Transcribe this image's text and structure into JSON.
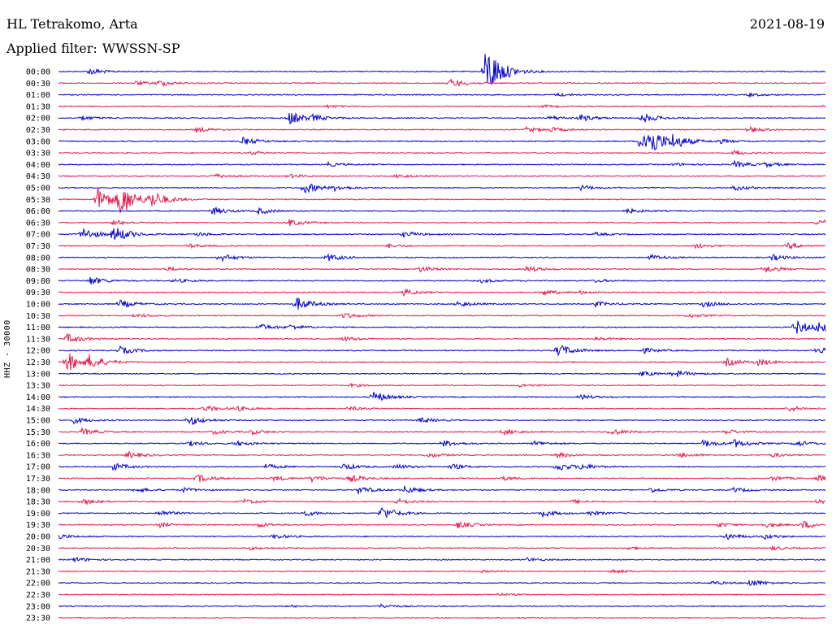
{
  "header": {
    "station": "HL Tetrakomo, Arta",
    "date": "2021-08-19",
    "filter_label": "Applied filter:",
    "filter_value": "WWSSN-SP"
  },
  "channel_label": "HHZ - 30000",
  "colors": {
    "line_a": "#0000cc",
    "line_b": "#e6194b",
    "background": "#ffffff",
    "text": "#000000"
  },
  "chart_data": {
    "type": "line",
    "title": "",
    "xlabel": "",
    "ylabel": "HHZ - 30000",
    "rows": [
      {
        "label": "00:00",
        "color": "line_a",
        "events": [
          [
            0.04,
            0.7
          ],
          [
            0.555,
            3.2
          ],
          [
            0.56,
            2.4
          ]
        ]
      },
      {
        "label": "00:30",
        "color": "line_b",
        "events": [
          [
            0.1,
            0.4
          ],
          [
            0.13,
            0.6
          ],
          [
            0.51,
            0.9
          ]
        ]
      },
      {
        "label": "01:00",
        "color": "line_a",
        "events": [
          [
            0.65,
            0.3
          ],
          [
            0.9,
            0.3
          ]
        ]
      },
      {
        "label": "01:30",
        "color": "line_b",
        "events": [
          [
            0.35,
            0.3
          ],
          [
            0.63,
            0.3
          ],
          [
            1.0,
            0.8
          ]
        ]
      },
      {
        "label": "02:00",
        "color": "line_a",
        "events": [
          [
            0.03,
            0.4
          ],
          [
            0.3,
            1.4
          ],
          [
            0.33,
            0.5
          ],
          [
            0.64,
            0.5
          ],
          [
            0.68,
            0.6
          ],
          [
            0.76,
            1.0
          ]
        ]
      },
      {
        "label": "02:30",
        "color": "line_b",
        "events": [
          [
            0.18,
            0.5
          ],
          [
            0.61,
            0.5
          ],
          [
            0.64,
            0.4
          ],
          [
            0.9,
            0.6
          ]
        ]
      },
      {
        "label": "03:00",
        "color": "line_a",
        "events": [
          [
            0.24,
            0.8
          ],
          [
            0.76,
            3.2
          ],
          [
            0.77,
            1.4
          ],
          [
            0.8,
            1.2
          ],
          [
            0.86,
            0.4
          ]
        ]
      },
      {
        "label": "03:30",
        "color": "line_b",
        "events": [
          [
            0.25,
            0.4
          ],
          [
            0.88,
            0.5
          ]
        ]
      },
      {
        "label": "04:00",
        "color": "line_a",
        "events": [
          [
            0.35,
            0.4
          ],
          [
            0.8,
            0.3
          ],
          [
            0.88,
            0.7
          ],
          [
            0.92,
            0.4
          ]
        ]
      },
      {
        "label": "04:30",
        "color": "line_b",
        "events": [
          [
            0.2,
            0.5
          ],
          [
            0.3,
            0.4
          ],
          [
            0.44,
            0.4
          ]
        ]
      },
      {
        "label": "05:00",
        "color": "line_a",
        "events": [
          [
            0.32,
            1.2
          ],
          [
            0.36,
            0.5
          ],
          [
            0.68,
            0.5
          ],
          [
            0.88,
            0.6
          ]
        ]
      },
      {
        "label": "05:30",
        "color": "line_b",
        "events": [
          [
            0.05,
            2.8
          ],
          [
            0.08,
            3.2
          ],
          [
            0.12,
            1.6
          ]
        ]
      },
      {
        "label": "06:00",
        "color": "line_a",
        "events": [
          [
            0.2,
            0.8
          ],
          [
            0.26,
            0.6
          ],
          [
            0.74,
            0.5
          ]
        ]
      },
      {
        "label": "06:30",
        "color": "line_b",
        "events": [
          [
            0.07,
            0.6
          ],
          [
            0.3,
            0.7
          ],
          [
            0.99,
            0.8
          ]
        ]
      },
      {
        "label": "07:00",
        "color": "line_a",
        "events": [
          [
            0.03,
            1.4
          ],
          [
            0.07,
            1.8
          ],
          [
            0.18,
            0.4
          ],
          [
            0.45,
            0.6
          ],
          [
            0.7,
            0.3
          ]
        ]
      },
      {
        "label": "07:30",
        "color": "line_b",
        "events": [
          [
            0.17,
            0.4
          ],
          [
            0.43,
            0.4
          ],
          [
            0.83,
            0.5
          ],
          [
            0.95,
            0.6
          ]
        ]
      },
      {
        "label": "08:00",
        "color": "line_a",
        "events": [
          [
            0.21,
            0.8
          ],
          [
            0.35,
            0.8
          ],
          [
            0.77,
            0.6
          ],
          [
            0.93,
            0.6
          ]
        ]
      },
      {
        "label": "08:30",
        "color": "line_b",
        "events": [
          [
            0.14,
            0.4
          ],
          [
            0.47,
            0.6
          ],
          [
            0.61,
            0.6
          ],
          [
            0.92,
            0.8
          ]
        ]
      },
      {
        "label": "09:00",
        "color": "line_a",
        "events": [
          [
            0.04,
            0.9
          ],
          [
            0.15,
            0.4
          ],
          [
            0.55,
            0.4
          ],
          [
            0.7,
            0.3
          ]
        ]
      },
      {
        "label": "09:30",
        "color": "line_b",
        "events": [
          [
            0.45,
            0.6
          ],
          [
            0.63,
            0.6
          ],
          [
            0.68,
            0.3
          ]
        ]
      },
      {
        "label": "10:00",
        "color": "line_a",
        "events": [
          [
            0.08,
            0.8
          ],
          [
            0.31,
            1.4
          ],
          [
            0.52,
            0.6
          ],
          [
            0.7,
            0.5
          ],
          [
            0.84,
            0.6
          ]
        ]
      },
      {
        "label": "10:30",
        "color": "line_b",
        "events": [
          [
            0.1,
            0.4
          ],
          [
            0.37,
            0.6
          ],
          [
            0.82,
            0.4
          ]
        ]
      },
      {
        "label": "11:00",
        "color": "line_a",
        "events": [
          [
            0.26,
            0.7
          ],
          [
            0.3,
            0.5
          ],
          [
            0.96,
            1.6
          ],
          [
            0.99,
            1.0
          ]
        ]
      },
      {
        "label": "11:30",
        "color": "line_b",
        "events": [
          [
            0.01,
            1.0
          ],
          [
            0.37,
            0.5
          ],
          [
            0.7,
            0.4
          ]
        ]
      },
      {
        "label": "12:00",
        "color": "line_a",
        "events": [
          [
            0.08,
            0.8
          ],
          [
            0.65,
            1.4
          ],
          [
            0.76,
            0.6
          ],
          [
            0.99,
            0.8
          ]
        ]
      },
      {
        "label": "12:30",
        "color": "line_b",
        "events": [
          [
            0.01,
            2.2
          ],
          [
            0.04,
            1.2
          ],
          [
            0.87,
            0.8
          ],
          [
            0.91,
            0.7
          ]
        ]
      },
      {
        "label": "13:00",
        "color": "line_a",
        "events": [
          [
            0.8,
            0.8
          ],
          [
            0.76,
            0.5
          ]
        ]
      },
      {
        "label": "13:30",
        "color": "line_b",
        "events": [
          [
            0.38,
            0.3
          ],
          [
            0.6,
            0.3
          ]
        ]
      },
      {
        "label": "14:00",
        "color": "line_a",
        "events": [
          [
            0.41,
            1.2
          ],
          [
            0.68,
            0.5
          ]
        ]
      },
      {
        "label": "14:30",
        "color": "line_b",
        "events": [
          [
            0.19,
            0.6
          ],
          [
            0.23,
            0.5
          ],
          [
            0.38,
            0.4
          ],
          [
            0.95,
            0.6
          ]
        ]
      },
      {
        "label": "15:00",
        "color": "line_a",
        "events": [
          [
            0.02,
            0.6
          ],
          [
            0.17,
            1.0
          ],
          [
            0.47,
            0.6
          ]
        ]
      },
      {
        "label": "15:30",
        "color": "line_b",
        "events": [
          [
            0.03,
            0.7
          ],
          [
            0.2,
            0.5
          ],
          [
            0.25,
            0.5
          ],
          [
            0.58,
            0.6
          ],
          [
            0.72,
            0.7
          ],
          [
            0.87,
            0.5
          ]
        ]
      },
      {
        "label": "16:00",
        "color": "line_a",
        "events": [
          [
            0.17,
            0.5
          ],
          [
            0.23,
            0.5
          ],
          [
            0.5,
            0.7
          ],
          [
            0.62,
            0.5
          ],
          [
            0.84,
            0.8
          ],
          [
            0.88,
            0.8
          ],
          [
            0.96,
            0.6
          ]
        ]
      },
      {
        "label": "16:30",
        "color": "line_b",
        "events": [
          [
            0.09,
            0.7
          ],
          [
            0.48,
            0.5
          ],
          [
            0.65,
            0.5
          ],
          [
            0.81,
            0.5
          ],
          [
            0.93,
            0.4
          ]
        ]
      },
      {
        "label": "17:00",
        "color": "line_a",
        "events": [
          [
            0.07,
            0.8
          ],
          [
            0.27,
            0.5
          ],
          [
            0.37,
            0.7
          ],
          [
            0.44,
            0.5
          ],
          [
            0.51,
            0.6
          ],
          [
            0.65,
            0.9
          ],
          [
            0.68,
            0.5
          ]
        ]
      },
      {
        "label": "17:30",
        "color": "line_b",
        "events": [
          [
            0.18,
            0.9
          ],
          [
            0.28,
            0.5
          ],
          [
            0.33,
            0.6
          ],
          [
            0.38,
            0.7
          ],
          [
            0.58,
            0.4
          ],
          [
            0.93,
            0.5
          ],
          [
            0.99,
            0.6
          ]
        ]
      },
      {
        "label": "18:00",
        "color": "line_a",
        "events": [
          [
            0.1,
            0.5
          ],
          [
            0.16,
            0.5
          ],
          [
            0.39,
            0.8
          ],
          [
            0.45,
            0.8
          ],
          [
            0.77,
            0.5
          ],
          [
            0.88,
            0.5
          ]
        ]
      },
      {
        "label": "18:30",
        "color": "line_b",
        "events": [
          [
            0.03,
            0.6
          ],
          [
            0.24,
            0.5
          ],
          [
            0.44,
            0.6
          ],
          [
            0.67,
            0.4
          ],
          [
            0.99,
            0.7
          ]
        ]
      },
      {
        "label": "19:00",
        "color": "line_a",
        "events": [
          [
            0.13,
            0.6
          ],
          [
            0.32,
            0.6
          ],
          [
            0.42,
            1.4
          ],
          [
            0.63,
            0.7
          ],
          [
            0.69,
            0.5
          ]
        ]
      },
      {
        "label": "19:30",
        "color": "line_b",
        "events": [
          [
            0.13,
            0.5
          ],
          [
            0.26,
            0.5
          ],
          [
            0.52,
            0.7
          ],
          [
            0.86,
            0.5
          ],
          [
            0.92,
            0.5
          ],
          [
            0.97,
            0.8
          ]
        ]
      },
      {
        "label": "20:00",
        "color": "line_a",
        "events": [
          [
            0.0,
            0.5
          ],
          [
            0.28,
            0.5
          ],
          [
            0.87,
            0.7
          ],
          [
            0.92,
            0.5
          ]
        ]
      },
      {
        "label": "20:30",
        "color": "line_b",
        "events": [
          [
            0.25,
            0.3
          ],
          [
            0.74,
            0.3
          ],
          [
            0.93,
            0.4
          ]
        ]
      },
      {
        "label": "21:00",
        "color": "line_a",
        "events": [
          [
            0.02,
            0.5
          ],
          [
            0.61,
            0.4
          ]
        ]
      },
      {
        "label": "21:30",
        "color": "line_b",
        "events": [
          [
            0.72,
            0.4
          ],
          [
            0.55,
            0.2
          ]
        ]
      },
      {
        "label": "22:00",
        "color": "line_a",
        "events": [
          [
            0.85,
            0.4
          ],
          [
            0.9,
            0.8
          ]
        ]
      },
      {
        "label": "22:30",
        "color": "line_b",
        "events": [
          [
            0.57,
            0.3
          ]
        ]
      },
      {
        "label": "23:00",
        "color": "line_a",
        "events": [
          [
            0.42,
            0.4
          ],
          [
            0.3,
            0.2
          ]
        ]
      },
      {
        "label": "23:30",
        "color": "line_b",
        "events": [
          [
            0.6,
            0.1
          ]
        ]
      }
    ]
  }
}
